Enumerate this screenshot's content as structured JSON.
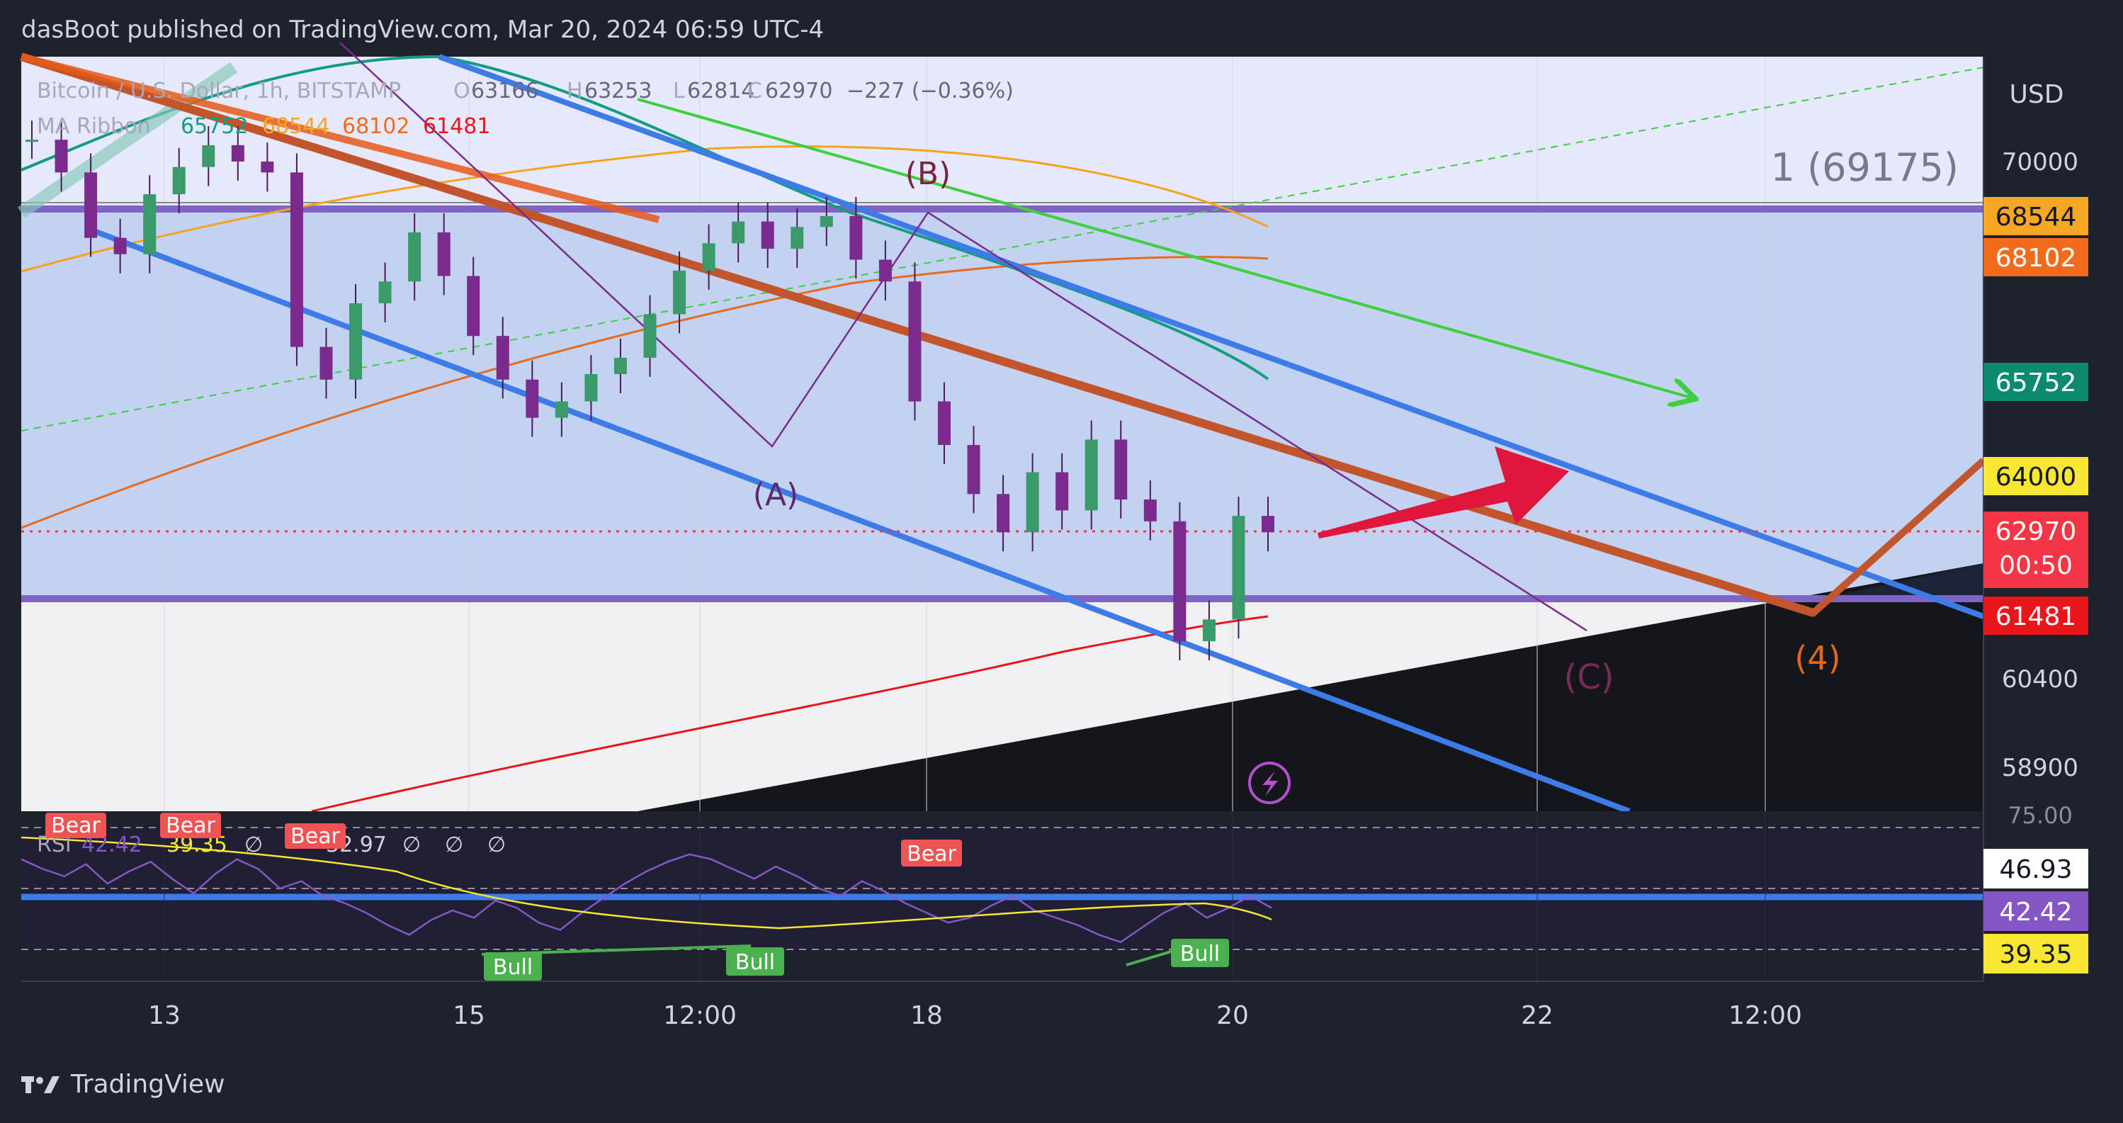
{
  "header": {
    "published_by": "dasBoot published on TradingView.com, Mar 20, 2024 06:59 UTC-4"
  },
  "legend": {
    "symbol": "Bitcoin / U.S. Dollar, 1h, BITSTAMP",
    "open_label": "O",
    "open": "63166",
    "high_label": "H",
    "high": "63253",
    "low_label": "L",
    "low": "62814",
    "close_label": "C",
    "close": "62970",
    "change": "−227 (−0.36%)",
    "ma_name": "MA Ribbon",
    "ma_values": [
      "65752",
      "68544",
      "68102",
      "61481"
    ]
  },
  "scale": {
    "currency": "USD"
  },
  "chart_data": {
    "type": "candlestick",
    "timeframe": "1h",
    "x_ticks": [
      "13",
      "15",
      "12:00",
      "18",
      "20",
      "22",
      "12:00"
    ],
    "y_ticks": [
      70000,
      60400,
      58900
    ],
    "price_badges": [
      {
        "value": "68544",
        "color": "#f5a623"
      },
      {
        "value": "68102",
        "color": "#f26a1b"
      },
      {
        "value": "65752",
        "color": "#0b8a70"
      },
      {
        "value": "64000",
        "color": "#f7e733"
      },
      {
        "value": "62970",
        "color": "#f23645"
      },
      {
        "value": "61481",
        "color": "#e8151b"
      }
    ],
    "countdown": "00:50",
    "fib_label": "1 (69175)",
    "wave_labels": [
      "(A)",
      "(B)",
      "(C)",
      "(4)"
    ],
    "candles_close_path": [
      70400,
      69800,
      68600,
      68300,
      69400,
      69900,
      70300,
      70000,
      69800,
      66600,
      66000,
      67400,
      67800,
      68700,
      67900,
      66800,
      66000,
      65300,
      65600,
      66100,
      66400,
      67200,
      68000,
      68500,
      68900,
      68400,
      68800,
      69000,
      68200,
      67800,
      65600,
      64800,
      63900,
      63200,
      64300,
      63600,
      64900,
      63800,
      63400,
      61200,
      61600,
      63500,
      63200
    ],
    "rsi": {
      "label": "RSI",
      "value": "42.42",
      "ma_value": "39.35",
      "level_label": "32.97",
      "na_marks": [
        "∅",
        "∅",
        "∅",
        "∅"
      ],
      "scale_ticks": [
        "75.00",
        "46.93",
        "42.42",
        "39.35"
      ],
      "top_label": "75.00",
      "signals": [
        {
          "text": "Bear",
          "kind": "bear"
        },
        {
          "text": "Bear",
          "kind": "bear"
        },
        {
          "text": "Bear",
          "kind": "bear"
        },
        {
          "text": "Bear",
          "kind": "bear"
        },
        {
          "text": "Bull",
          "kind": "bull"
        },
        {
          "text": "Bull",
          "kind": "bull"
        },
        {
          "text": "Bull",
          "kind": "bull"
        }
      ],
      "series": [
        62,
        58,
        55,
        60,
        52,
        57,
        61,
        54,
        48,
        56,
        62,
        58,
        50,
        53,
        47,
        44,
        40,
        35,
        31,
        37,
        41,
        38,
        45,
        42,
        36,
        33,
        40,
        46,
        52,
        57,
        61,
        64,
        62,
        58,
        54,
        59,
        55,
        50,
        47,
        53,
        49,
        44,
        40,
        36,
        38,
        43,
        47,
        41,
        38,
        35,
        31,
        28,
        34,
        40,
        44,
        38,
        42,
        47,
        42
      ]
    }
  },
  "footer": {
    "brand": "TradingView"
  },
  "icons": {
    "alert": "lightning-alert-icon",
    "logo": "tradingview-logo-icon"
  }
}
